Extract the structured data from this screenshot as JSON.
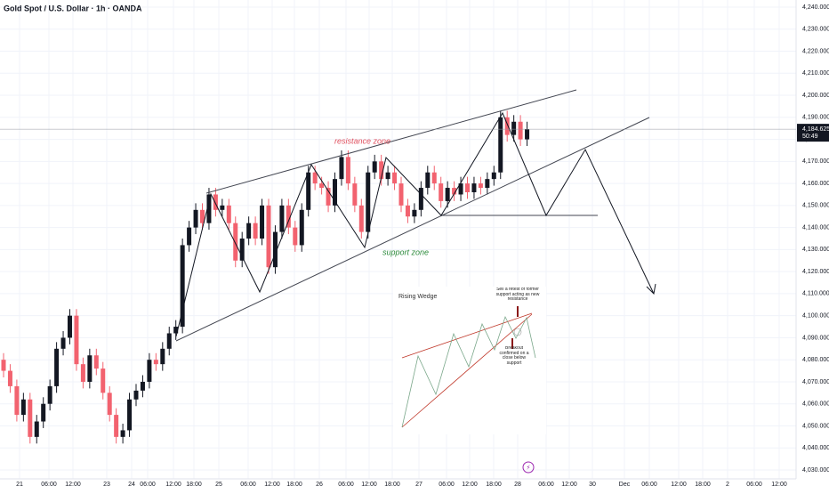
{
  "chart_data": {
    "type": "candlestick",
    "title": "Gold Spot / U.S. Dollar · 1h · OANDA",
    "annotations": {
      "resistance": "resistance zone",
      "support": "support zone",
      "inset_title": "Rising Wedge",
      "inset_sell": "Sell a retest of former support acting as new resistance",
      "inset_breakout": "Breakout confirmed on a close below support"
    },
    "last_price": {
      "value": 4184.625,
      "label": "4,184.625",
      "countdown": "50:49"
    },
    "up_color": "#131722",
    "down_color": "#f2626f",
    "ylim": [
      4030,
      4240
    ],
    "yticks": [
      {
        "value": 4030,
        "label": "4,030.000"
      },
      {
        "value": 4040,
        "label": "4,040.000"
      },
      {
        "value": 4050,
        "label": "4,050.000"
      },
      {
        "value": 4060,
        "label": "4,060.000"
      },
      {
        "value": 4070,
        "label": "4,070.000"
      },
      {
        "value": 4080,
        "label": "4,080.000"
      },
      {
        "value": 4090,
        "label": "4,090.000"
      },
      {
        "value": 4100,
        "label": "4,100.000"
      },
      {
        "value": 4110,
        "label": "4,110.000"
      },
      {
        "value": 4120,
        "label": "4,120.000"
      },
      {
        "value": 4130,
        "label": "4,130.000"
      },
      {
        "value": 4140,
        "label": "4,140.000"
      },
      {
        "value": 4150,
        "label": "4,150.000"
      },
      {
        "value": 4160,
        "label": "4,160.000"
      },
      {
        "value": 4170,
        "label": "4,170.000"
      },
      {
        "value": 4180,
        "label": "4,180.000"
      },
      {
        "value": 4190,
        "label": "4,190.000"
      },
      {
        "value": 4200,
        "label": "4,200.000"
      },
      {
        "value": 4210,
        "label": "4,210.000"
      },
      {
        "value": 4220,
        "label": "4,220.000"
      },
      {
        "value": 4230,
        "label": "4,230.000"
      },
      {
        "value": 4240,
        "label": "4,240.000"
      }
    ],
    "x_axis_labels": [
      "21",
      "06:00",
      "12:00",
      "23",
      "24",
      "06:00",
      "12:00",
      "18:00",
      "25",
      "06:00",
      "12:00",
      "18:00",
      "26",
      "06:00",
      "12:00",
      "18:00",
      "27",
      "06:00",
      "12:00",
      "18:00",
      "28",
      "06:00",
      "12:00",
      "30",
      "Dec",
      "06:00",
      "12:00",
      "18:00",
      "2",
      "06:00",
      "12:00"
    ],
    "open": [
      4080,
      4075,
      4068,
      4055,
      4062,
      4045,
      4052,
      4060,
      4068,
      4085,
      4090,
      4100,
      4078,
      4070,
      4082,
      4076,
      4065,
      4055,
      4045,
      4048,
      4062,
      4066,
      4070,
      4080,
      4078,
      4085,
      4092,
      4095,
      4132,
      4140,
      4148,
      4142,
      4155,
      4148,
      4150,
      4142,
      4125,
      4135,
      4142,
      4135,
      4150,
      4122,
      4138,
      4150,
      4140,
      4132,
      4148,
      4165,
      4160,
      4158,
      4150,
      4162,
      4172,
      4160,
      4150,
      4138,
      4165,
      4170,
      4162,
      4165,
      4160,
      4150,
      4145,
      4148,
      4158,
      4165,
      4160,
      4152,
      4158,
      4155,
      4160,
      4156,
      4160,
      4158,
      4162,
      4165,
      4190,
      4182,
      4188,
      4180
    ],
    "high": [
      4083,
      4078,
      4071,
      4065,
      4065,
      4055,
      4063,
      4071,
      4088,
      4093,
      4103,
      4103,
      4081,
      4085,
      4085,
      4079,
      4068,
      4058,
      4051,
      4065,
      4069,
      4073,
      4083,
      4083,
      4088,
      4095,
      4098,
      4135,
      4143,
      4151,
      4151,
      4158,
      4158,
      4153,
      4153,
      4145,
      4138,
      4145,
      4145,
      4153,
      4153,
      4141,
      4153,
      4153,
      4143,
      4151,
      4168,
      4168,
      4163,
      4161,
      4165,
      4175,
      4175,
      4163,
      4153,
      4168,
      4173,
      4173,
      4168,
      4168,
      4163,
      4153,
      4151,
      4161,
      4168,
      4168,
      4163,
      4161,
      4161,
      4163,
      4163,
      4163,
      4163,
      4165,
      4168,
      4193,
      4193,
      4191,
      4191,
      4188
    ],
    "low": [
      4072,
      4065,
      4052,
      4052,
      4042,
      4042,
      4049,
      4057,
      4065,
      4082,
      4087,
      4075,
      4067,
      4067,
      4073,
      4062,
      4052,
      4042,
      4042,
      4045,
      4059,
      4063,
      4067,
      4075,
      4075,
      4082,
      4089,
      4092,
      4129,
      4137,
      4139,
      4139,
      4145,
      4145,
      4139,
      4122,
      4122,
      4132,
      4132,
      4132,
      4119,
      4119,
      4135,
      4137,
      4129,
      4129,
      4145,
      4157,
      4155,
      4147,
      4147,
      4159,
      4157,
      4147,
      4135,
      4135,
      4162,
      4159,
      4159,
      4157,
      4147,
      4142,
      4142,
      4145,
      4155,
      4157,
      4149,
      4149,
      4152,
      4152,
      4153,
      4153,
      4155,
      4155,
      4159,
      4162,
      4179,
      4179,
      4177,
      4177
    ],
    "close": [
      4075,
      4068,
      4055,
      4062,
      4045,
      4052,
      4060,
      4068,
      4085,
      4090,
      4100,
      4078,
      4070,
      4082,
      4076,
      4065,
      4055,
      4045,
      4048,
      4062,
      4066,
      4070,
      4080,
      4078,
      4085,
      4092,
      4095,
      4132,
      4140,
      4148,
      4142,
      4155,
      4148,
      4150,
      4142,
      4125,
      4135,
      4142,
      4135,
      4150,
      4122,
      4138,
      4150,
      4140,
      4132,
      4148,
      4165,
      4160,
      4158,
      4150,
      4162,
      4172,
      4160,
      4150,
      4138,
      4165,
      4170,
      4162,
      4165,
      4160,
      4150,
      4145,
      4148,
      4158,
      4165,
      4160,
      4152,
      4158,
      4155,
      4160,
      4156,
      4160,
      4158,
      4162,
      4165,
      4190,
      4182,
      4188,
      4180,
      4184.625
    ],
    "grid": true
  }
}
